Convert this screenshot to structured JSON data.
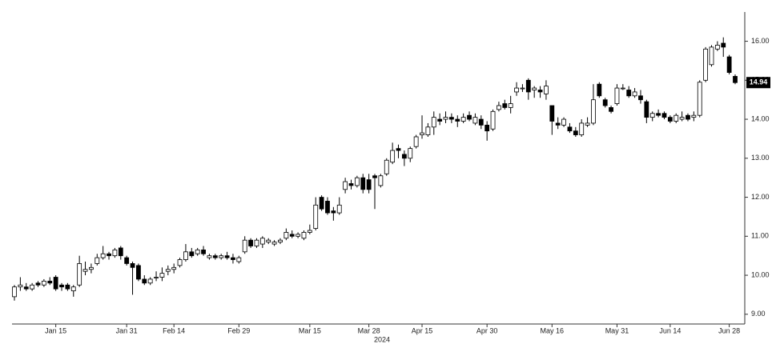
{
  "chart_data": {
    "type": "candlestick",
    "x_label": "2024",
    "categories": [
      null,
      null,
      null,
      null,
      null,
      null,
      null,
      "Jan 15",
      null,
      null,
      null,
      null,
      null,
      null,
      null,
      null,
      null,
      null,
      null,
      "Jan 31",
      null,
      null,
      null,
      null,
      null,
      null,
      null,
      "Feb 14",
      null,
      null,
      null,
      null,
      null,
      null,
      null,
      null,
      null,
      null,
      "Feb 29",
      null,
      null,
      null,
      null,
      null,
      null,
      null,
      null,
      null,
      null,
      null,
      "Mar 15",
      null,
      null,
      null,
      null,
      null,
      null,
      null,
      null,
      null,
      "Mar 28",
      null,
      null,
      null,
      null,
      null,
      null,
      null,
      null,
      "Apr 15",
      null,
      null,
      null,
      null,
      null,
      null,
      null,
      null,
      null,
      null,
      "Apr 30",
      null,
      null,
      null,
      null,
      null,
      null,
      null,
      null,
      null,
      null,
      "May 16",
      null,
      null,
      null,
      null,
      null,
      null,
      null,
      null,
      null,
      null,
      "May 31",
      null,
      null,
      null,
      null,
      null,
      null,
      null,
      null,
      "Jun 14",
      null,
      null,
      null,
      null,
      null,
      null,
      null,
      null,
      null,
      "Jun 28",
      null
    ],
    "open": [
      9.45,
      9.7,
      9.7,
      9.65,
      9.8,
      9.75,
      9.85,
      9.95,
      9.75,
      9.75,
      9.6,
      9.75,
      10.1,
      10.15,
      10.3,
      10.45,
      10.55,
      10.5,
      10.7,
      10.45,
      10.3,
      10.25,
      9.9,
      9.8,
      9.95,
      9.95,
      10.1,
      10.15,
      10.25,
      10.4,
      10.6,
      10.55,
      10.65,
      10.45,
      10.5,
      10.45,
      10.5,
      10.45,
      10.35,
      10.6,
      10.9,
      10.75,
      10.8,
      10.85,
      10.8,
      10.85,
      10.95,
      11.05,
      11.0,
      10.95,
      11.1,
      11.2,
      12.0,
      11.9,
      11.65,
      11.6,
      12.2,
      12.35,
      12.3,
      12.5,
      12.45,
      12.55,
      12.3,
      12.6,
      12.9,
      13.25,
      13.1,
      13.0,
      13.3,
      13.6,
      13.6,
      13.8,
      14.0,
      14.0,
      14.05,
      14.0,
      13.95,
      14.1,
      13.9,
      14.0,
      13.85,
      13.75,
      14.25,
      14.4,
      14.3,
      14.7,
      14.8,
      15.0,
      14.75,
      14.75,
      14.65,
      14.35,
      13.9,
      13.85,
      13.8,
      13.7,
      13.6,
      13.85,
      13.9,
      14.9,
      14.5,
      14.3,
      14.4,
      14.8,
      14.75,
      14.6,
      14.6,
      14.45,
      14.05,
      14.15,
      14.15,
      14.05,
      13.95,
      14.0,
      14.1,
      14.05,
      14.1,
      15.0,
      15.4,
      15.8,
      15.95,
      15.6,
      15.1
    ],
    "high": [
      9.75,
      9.95,
      9.8,
      9.8,
      9.85,
      9.9,
      9.95,
      10.0,
      9.8,
      9.8,
      9.75,
      10.5,
      10.35,
      10.3,
      10.55,
      10.75,
      10.6,
      10.7,
      10.75,
      10.5,
      10.35,
      10.3,
      10.0,
      9.95,
      10.1,
      10.2,
      10.25,
      10.3,
      10.45,
      10.8,
      10.7,
      10.7,
      10.75,
      10.55,
      10.55,
      10.55,
      10.6,
      10.55,
      10.5,
      11.0,
      10.95,
      10.95,
      11.0,
      10.95,
      10.9,
      10.95,
      11.2,
      11.15,
      11.1,
      11.15,
      11.3,
      12.0,
      12.05,
      12.0,
      11.75,
      12.0,
      12.5,
      12.45,
      12.55,
      12.6,
      12.6,
      12.6,
      12.6,
      13.0,
      13.4,
      13.35,
      13.2,
      13.3,
      13.6,
      14.1,
      13.9,
      14.2,
      14.15,
      14.2,
      14.15,
      14.1,
      14.15,
      14.2,
      14.15,
      14.1,
      13.95,
      14.25,
      14.45,
      14.5,
      14.6,
      14.95,
      14.9,
      15.05,
      14.85,
      14.85,
      15.0,
      14.35,
      14.05,
      14.05,
      13.9,
      13.8,
      14.0,
      14.05,
      14.9,
      14.95,
      14.55,
      14.35,
      14.9,
      14.9,
      14.85,
      14.8,
      14.75,
      14.5,
      14.2,
      14.25,
      14.2,
      14.1,
      14.15,
      14.2,
      14.15,
      14.2,
      15.0,
      15.85,
      15.9,
      16.0,
      16.1,
      15.65,
      15.15
    ],
    "low": [
      9.35,
      9.6,
      9.6,
      9.6,
      9.7,
      9.7,
      9.75,
      9.6,
      9.6,
      9.6,
      9.45,
      9.7,
      10.0,
      10.05,
      10.25,
      10.4,
      10.4,
      10.45,
      10.4,
      10.25,
      9.5,
      9.85,
      9.75,
      9.75,
      9.85,
      9.85,
      10.0,
      10.05,
      10.2,
      10.35,
      10.45,
      10.5,
      10.5,
      10.4,
      10.4,
      10.4,
      10.4,
      10.3,
      10.3,
      10.55,
      10.7,
      10.7,
      10.7,
      10.8,
      10.75,
      10.8,
      10.9,
      10.95,
      10.95,
      10.9,
      11.05,
      11.15,
      11.65,
      11.55,
      11.4,
      11.55,
      12.1,
      12.2,
      12.25,
      12.1,
      12.1,
      11.7,
      12.25,
      12.55,
      12.85,
      13.0,
      12.8,
      12.9,
      13.25,
      13.5,
      13.55,
      13.6,
      13.85,
      13.9,
      13.9,
      13.8,
      13.9,
      13.95,
      13.85,
      13.75,
      13.45,
      13.7,
      14.2,
      14.25,
      14.15,
      14.6,
      14.7,
      14.5,
      14.55,
      14.55,
      14.5,
      13.6,
      13.75,
      13.8,
      13.65,
      13.55,
      13.55,
      13.8,
      13.85,
      14.55,
      14.3,
      14.15,
      14.35,
      14.75,
      14.55,
      14.55,
      14.4,
      13.9,
      13.95,
      14.05,
      14.0,
      13.9,
      13.9,
      13.95,
      13.95,
      13.95,
      14.05,
      14.95,
      15.35,
      15.75,
      15.6,
      15.15,
      14.9
    ],
    "close": [
      9.7,
      9.75,
      9.65,
      9.75,
      9.75,
      9.85,
      9.8,
      9.65,
      9.7,
      9.65,
      9.7,
      10.3,
      10.15,
      10.2,
      10.45,
      10.55,
      10.5,
      10.65,
      10.5,
      10.3,
      10.2,
      9.9,
      9.8,
      9.9,
      9.95,
      10.05,
      10.15,
      10.2,
      10.4,
      10.6,
      10.5,
      10.65,
      10.55,
      10.5,
      10.45,
      10.5,
      10.45,
      10.4,
      10.45,
      10.9,
      10.75,
      10.9,
      10.95,
      10.9,
      10.85,
      10.9,
      11.1,
      11.0,
      11.05,
      11.1,
      11.15,
      11.8,
      11.7,
      11.6,
      11.6,
      11.8,
      12.4,
      12.3,
      12.5,
      12.2,
      12.2,
      12.5,
      12.55,
      12.95,
      13.2,
      13.2,
      13.0,
      13.25,
      13.55,
      13.65,
      13.8,
      14.05,
      13.95,
      14.05,
      14.0,
      13.95,
      14.05,
      14.0,
      14.05,
      13.85,
      13.7,
      14.2,
      14.35,
      14.3,
      14.4,
      14.8,
      14.8,
      14.7,
      14.8,
      14.7,
      14.85,
      13.95,
      13.85,
      14.0,
      13.7,
      13.6,
      13.9,
      13.9,
      14.5,
      14.6,
      14.35,
      14.2,
      14.8,
      14.8,
      14.6,
      14.7,
      14.5,
      14.05,
      14.15,
      14.1,
      14.05,
      13.95,
      14.1,
      14.05,
      14.0,
      14.1,
      14.95,
      15.8,
      15.85,
      15.9,
      15.85,
      15.2,
      14.94
    ],
    "up_color": "#ffffff",
    "down_color": "#000000",
    "last_price": {
      "value": 14.94,
      "label": "14.94"
    },
    "ylim": [
      8.75,
      16.75
    ],
    "yticks": [
      {
        "value": 9,
        "label": "9.00"
      },
      {
        "value": 10,
        "label": "10.00"
      },
      {
        "value": 11,
        "label": "11.00"
      },
      {
        "value": 12,
        "label": "12.00"
      },
      {
        "value": 13,
        "label": "13.00"
      },
      {
        "value": 14,
        "label": "14.00"
      },
      {
        "value": 15,
        "label": "15.00"
      },
      {
        "value": 16,
        "label": "16.00"
      }
    ]
  }
}
